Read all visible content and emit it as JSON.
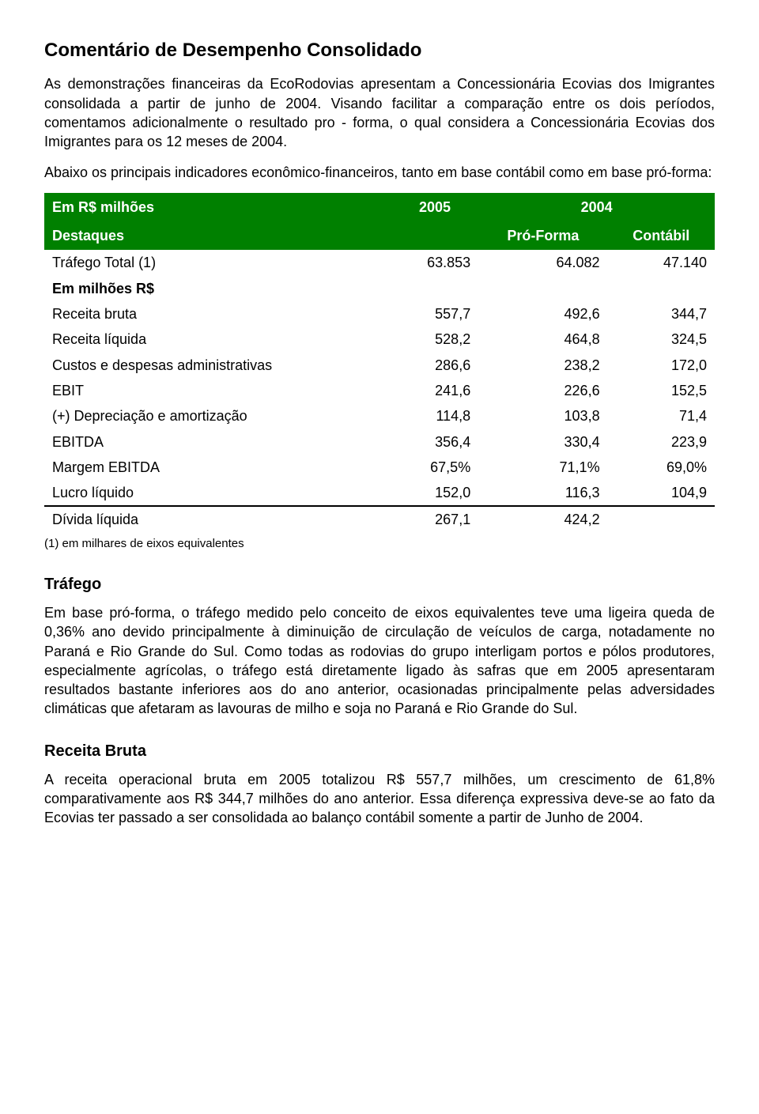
{
  "title": "Comentário de Desempenho Consolidado",
  "intro_p1": "As demonstrações financeiras da EcoRodovias apresentam a Concessionária Ecovias dos Imigrantes consolidada a partir de junho de 2004. Visando facilitar a comparação entre os dois períodos, comentamos adicionalmente o resultado pro - forma, o qual considera a Concessionária Ecovias dos Imigrantes para os 12 meses de 2004.",
  "intro_p2": "Abaixo os principais indicadores econômico-financeiros, tanto em base contábil como em base pró-forma:",
  "table": {
    "header_colors": {
      "bg": "#008000",
      "fg": "#ffffff"
    },
    "header_row1": {
      "col1": "Em R$ milhões",
      "col2": "2005",
      "col3": "2004"
    },
    "header_row2": {
      "col1": "Destaques",
      "col2": "Pró-Forma",
      "col3": "Contábil"
    },
    "sub_label": "Em milhões R$",
    "rows": [
      {
        "label": "Tráfego Total (1)",
        "c2005": "63.853",
        "c2004pf": "64.082",
        "c2004ct": "47.140"
      },
      {
        "label": "Receita bruta",
        "c2005": "557,7",
        "c2004pf": "492,6",
        "c2004ct": "344,7"
      },
      {
        "label": "Receita líquida",
        "c2005": "528,2",
        "c2004pf": "464,8",
        "c2004ct": "324,5"
      },
      {
        "label": "Custos e despesas administrativas",
        "c2005": "286,6",
        "c2004pf": "238,2",
        "c2004ct": "172,0"
      },
      {
        "label": "EBIT",
        "c2005": "241,6",
        "c2004pf": "226,6",
        "c2004ct": "152,5"
      },
      {
        "label": "(+) Depreciação e amortização",
        "c2005": "114,8",
        "c2004pf": "103,8",
        "c2004ct": "71,4"
      },
      {
        "label": "EBITDA",
        "c2005": "356,4",
        "c2004pf": "330,4",
        "c2004ct": "223,9"
      },
      {
        "label": "Margem EBITDA",
        "c2005": "67,5%",
        "c2004pf": "71,1%",
        "c2004ct": "69,0%"
      },
      {
        "label": "Lucro líquido",
        "c2005": "152,0",
        "c2004pf": "116,3",
        "c2004ct": "104,9"
      },
      {
        "label": "Dívida líquida",
        "c2005": "267,1",
        "c2004pf": "424,2",
        "c2004ct": ""
      }
    ],
    "footnote": "(1) em milhares de eixos equivalentes"
  },
  "section_trafego": {
    "heading": "Tráfego",
    "body": "Em base pró-forma, o tráfego medido pelo conceito de eixos equivalentes teve uma ligeira queda de 0,36% ano devido principalmente à diminuição de circulação de veículos de carga, notadamente no Paraná e Rio Grande do Sul. Como todas as rodovias do grupo interligam portos e pólos produtores, especialmente agrícolas, o tráfego está diretamente ligado às safras que em 2005 apresentaram resultados bastante inferiores aos do ano anterior, ocasionadas principalmente pelas adversidades climáticas que afetaram as lavouras de milho e soja no Paraná e Rio Grande do Sul."
  },
  "section_receita": {
    "heading": "Receita Bruta",
    "body": "A receita operacional bruta em 2005 totalizou R$ 557,7 milhões, um crescimento de 61,8% comparativamente aos R$ 344,7 milhões do ano anterior. Essa diferença expressiva deve-se ao fato da Ecovias ter passado a ser consolidada ao balanço contábil somente a partir de Junho de 2004."
  }
}
